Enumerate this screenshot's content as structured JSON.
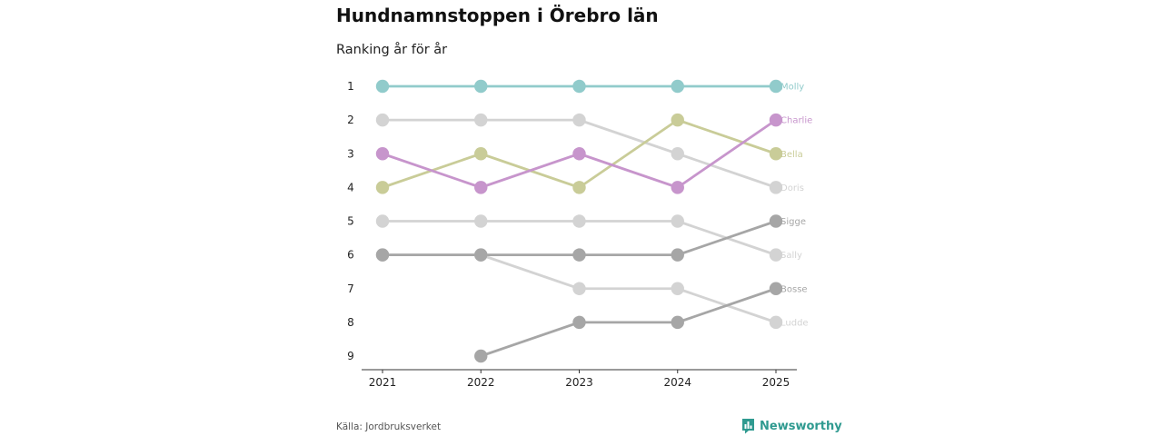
{
  "header": {
    "title": "Hundnamnstoppen i Örebro län",
    "subtitle": "Ranking år för år"
  },
  "footer": {
    "source": "Källa: Jordbruksverket",
    "brand": "Newsworthy"
  },
  "chart_data": {
    "type": "line",
    "title": "Hundnamnstoppen i Örebro län",
    "subtitle": "Ranking år för år",
    "xlabel": "",
    "ylabel": "",
    "categories": [
      "2021",
      "2022",
      "2023",
      "2024",
      "2025"
    ],
    "y_ticks": [
      "1",
      "2",
      "3",
      "4",
      "5",
      "6",
      "7",
      "8",
      "9"
    ],
    "ylim": [
      1,
      9
    ],
    "y_inverted": true,
    "series": [
      {
        "name": "Ludde",
        "color": "#d3d3d3",
        "ranks": [
          6,
          6,
          7,
          7,
          8
        ]
      },
      {
        "name": "Sally",
        "color": "#d3d3d3",
        "ranks": [
          5,
          5,
          5,
          5,
          6
        ]
      },
      {
        "name": "Doris",
        "color": "#d3d3d3",
        "ranks": [
          2,
          2,
          2,
          3,
          4
        ]
      },
      {
        "name": "Bosse",
        "color": "#a6a6a6",
        "ranks": [
          null,
          9,
          8,
          8,
          7
        ]
      },
      {
        "name": "Sigge",
        "color": "#a6a6a6",
        "ranks": [
          6,
          6,
          6,
          6,
          5
        ]
      },
      {
        "name": "Bella",
        "color": "#c9cc98",
        "ranks": [
          4,
          3,
          4,
          2,
          3
        ]
      },
      {
        "name": "Charlie",
        "color": "#c795cc",
        "ranks": [
          3,
          4,
          3,
          4,
          2
        ]
      },
      {
        "name": "Molly",
        "color": "#91cbcb",
        "ranks": [
          1,
          1,
          1,
          1,
          1
        ]
      }
    ]
  }
}
